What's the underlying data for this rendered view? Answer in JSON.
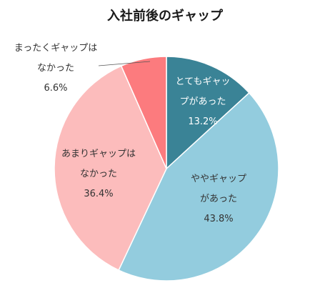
{
  "chart_data": {
    "type": "pie",
    "title": "入社前後のギャップ",
    "slices": [
      {
        "label_lines": [
          "とてもギャッ",
          "プがあった"
        ],
        "value": 13.2,
        "value_label": "13.2%",
        "color": "#3a8396",
        "text_color": "#ffffff"
      },
      {
        "label_lines": [
          "ややギャップ",
          "があった"
        ],
        "value": 43.8,
        "value_label": "43.8%",
        "color": "#93ccde",
        "text_color": "#333333"
      },
      {
        "label_lines": [
          "あまりギャップは",
          "なかった"
        ],
        "value": 36.4,
        "value_label": "36.4%",
        "color": "#fcbcbc",
        "text_color": "#333333"
      },
      {
        "label_lines": [
          "まったくギャップは",
          "なかった"
        ],
        "value": 6.6,
        "value_label": "6.6%",
        "color": "#fc7b7e",
        "text_color": "#333333"
      }
    ],
    "legend": "none",
    "start_angle": "12 o'clock, clockwise"
  }
}
